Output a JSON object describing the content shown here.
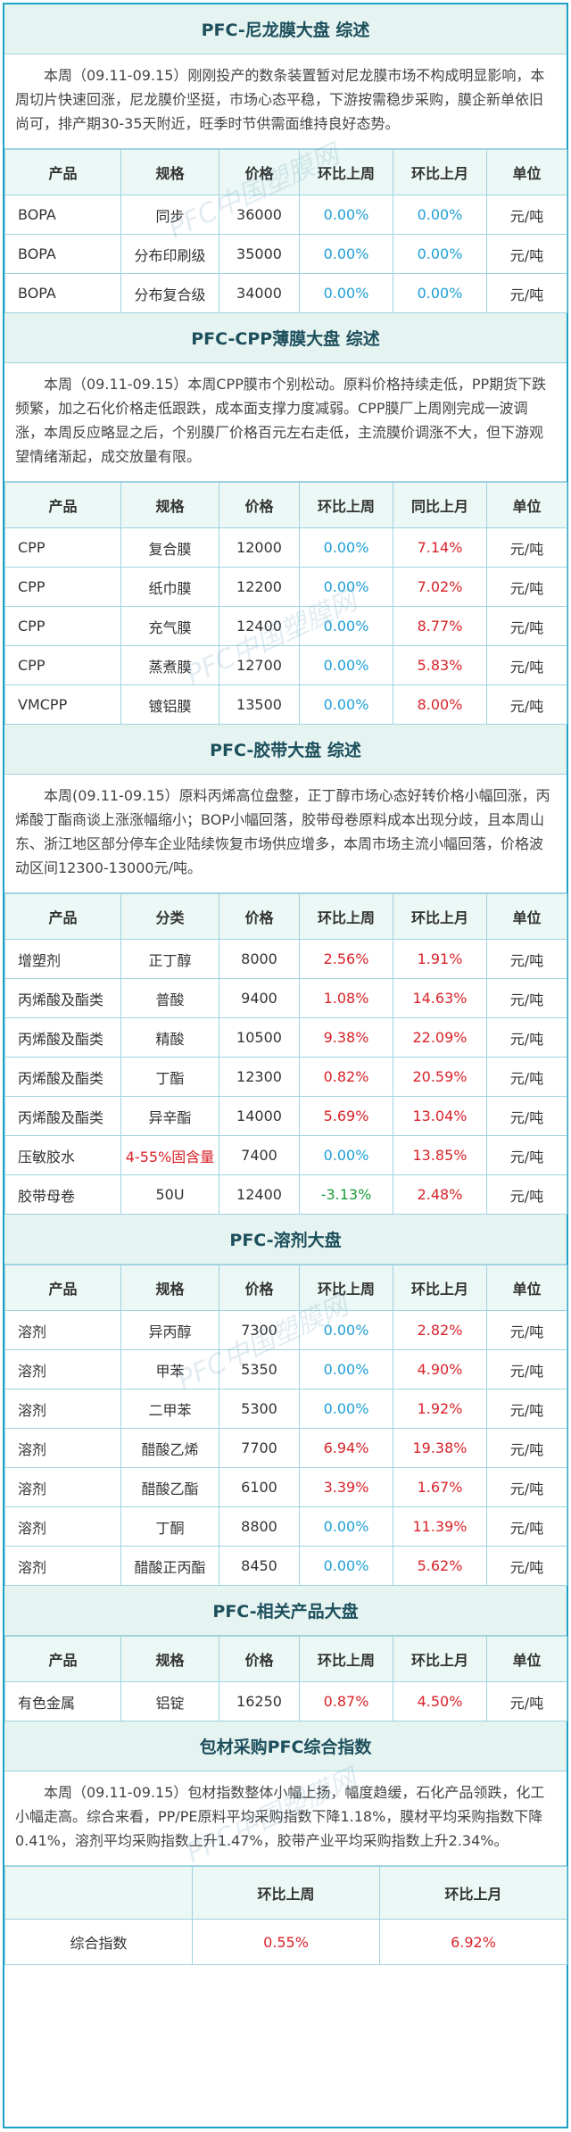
{
  "watermark": "PFC中国塑膜网",
  "sections": [
    {
      "title": "PFC-尼龙膜大盘 综述",
      "summary": "本周（09.11-09.15）刚刚投产的数条装置暂对尼龙膜市场不构成明显影响，本周切片快速回涨，尼龙膜价坚挺，市场心态平稳，下游按需稳步采购，膜企新单依旧尚可，排产期30-35天附近，旺季时节供需面维持良好态势。",
      "headers": [
        "产品",
        "规格",
        "价格",
        "环比上周",
        "环比上月",
        "单位"
      ],
      "rows": [
        [
          "BOPA",
          "同步",
          "36000",
          "0.00%",
          "0.00%",
          "元/吨"
        ],
        [
          "BOPA",
          "分布印刷级",
          "35000",
          "0.00%",
          "0.00%",
          "元/吨"
        ],
        [
          "BOPA",
          "分布复合级",
          "34000",
          "0.00%",
          "0.00%",
          "元/吨"
        ]
      ]
    },
    {
      "title": "PFC-CPP薄膜大盘 综述",
      "summary": "本周（09.11-09.15）本周CPP膜市个别松动。原料价格持续走低，PP期货下跌频繁，加之石化价格走低跟跌，成本面支撑力度减弱。CPP膜厂上周刚完成一波调涨，本周反应略显之后，个别膜厂价格百元左右走低，主流膜价调涨不大，但下游观望情绪渐起，成交放量有限。",
      "headers": [
        "产品",
        "规格",
        "价格",
        "环比上周",
        "同比上月",
        "单位"
      ],
      "rows": [
        [
          "CPP",
          "复合膜",
          "12000",
          "0.00%",
          "7.14%",
          "元/吨"
        ],
        [
          "CPP",
          "纸巾膜",
          "12200",
          "0.00%",
          "7.02%",
          "元/吨"
        ],
        [
          "CPP",
          "充气膜",
          "12400",
          "0.00%",
          "8.77%",
          "元/吨"
        ],
        [
          "CPP",
          "蒸煮膜",
          "12700",
          "0.00%",
          "5.83%",
          "元/吨"
        ],
        [
          "VMCPP",
          "镀铝膜",
          "13500",
          "0.00%",
          "8.00%",
          "元/吨"
        ]
      ]
    },
    {
      "title": "PFC-胶带大盘 综述",
      "summary": "本周(09.11-09.15）原料丙烯高位盘整，正丁醇市场心态好转价格小幅回涨，丙烯酸丁酯商谈上涨涨幅缩小；BOP小幅回落，胶带母卷原料成本出现分歧，且本周山东、浙江地区部分停车企业陆续恢复市场供应增多，本周市场主流小幅回落，价格波动区间12300-13000元/吨。",
      "headers": [
        "产品",
        "分类",
        "价格",
        "环比上周",
        "环比上月",
        "单位"
      ],
      "rows": [
        [
          "增塑剂",
          "正丁醇",
          "8000",
          "2.56%",
          "1.91%",
          "元/吨"
        ],
        [
          "丙烯酸及酯类",
          "普酸",
          "9400",
          "1.08%",
          "14.63%",
          "元/吨"
        ],
        [
          "丙烯酸及酯类",
          "精酸",
          "10500",
          "9.38%",
          "22.09%",
          "元/吨"
        ],
        [
          "丙烯酸及酯类",
          "丁酯",
          "12300",
          "0.82%",
          "20.59%",
          "元/吨"
        ],
        [
          "丙烯酸及酯类",
          "异辛酯",
          "14000",
          "5.69%",
          "13.04%",
          "元/吨"
        ],
        [
          "压敏胶水",
          "4-55%固含量",
          "7400",
          "0.00%",
          "13.85%",
          "元/吨"
        ],
        [
          "胶带母卷",
          "50U",
          "12400",
          "-3.13%",
          "2.48%",
          "元/吨"
        ]
      ]
    },
    {
      "title": "PFC-溶剂大盘",
      "summary": "",
      "headers": [
        "产品",
        "规格",
        "价格",
        "环比上周",
        "环比上月",
        "单位"
      ],
      "rows": [
        [
          "溶剂",
          "异丙醇",
          "7300",
          "0.00%",
          "2.82%",
          "元/吨"
        ],
        [
          "溶剂",
          "甲苯",
          "5350",
          "0.00%",
          "4.90%",
          "元/吨"
        ],
        [
          "溶剂",
          "二甲苯",
          "5300",
          "0.00%",
          "1.92%",
          "元/吨"
        ],
        [
          "溶剂",
          "醋酸乙烯",
          "7700",
          "6.94%",
          "19.38%",
          "元/吨"
        ],
        [
          "溶剂",
          "醋酸乙酯",
          "6100",
          "3.39%",
          "1.67%",
          "元/吨"
        ],
        [
          "溶剂",
          "丁酮",
          "8800",
          "0.00%",
          "11.39%",
          "元/吨"
        ],
        [
          "溶剂",
          "醋酸正丙酯",
          "8450",
          "0.00%",
          "5.62%",
          "元/吨"
        ]
      ]
    },
    {
      "title": "PFC-相关产品大盘",
      "summary": "",
      "headers": [
        "产品",
        "规格",
        "价格",
        "环比上周",
        "环比上月",
        "单位"
      ],
      "rows": [
        [
          "有色金属",
          "铝锭",
          "16250",
          "0.87%",
          "4.50%",
          "元/吨"
        ]
      ]
    }
  ],
  "index": {
    "title": "包材采购PFC综合指数",
    "summary": "本周（09.11-09.15）包材指数整体小幅上扬，幅度趋缓，石化产品领跌，化工小幅走高。综合来看，PP/PE原料平均采购指数下降1.18%，膜材平均采购指数下降0.41%，溶剂平均采购指数上升1.47%，胶带产业平均采购指数上升2.34%。",
    "headers": [
      "",
      "环比上周",
      "环比上月"
    ],
    "row": [
      "综合指数",
      "0.55%",
      "6.92%"
    ]
  }
}
